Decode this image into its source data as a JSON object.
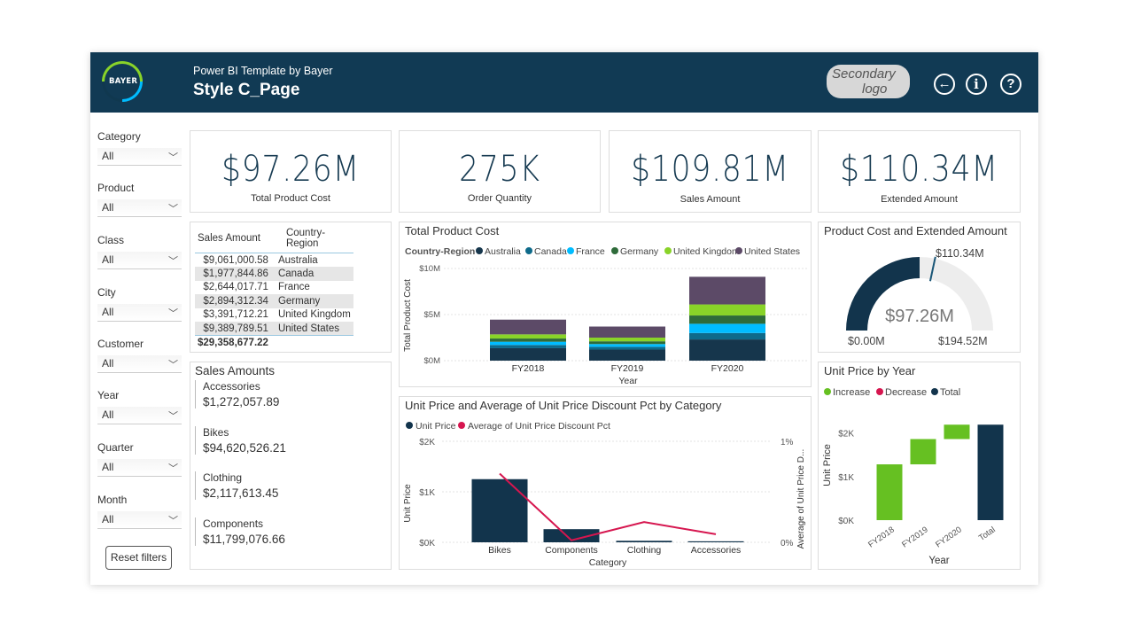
{
  "header": {
    "logo_text": "BAYER",
    "subtitle": "Power BI Template by Bayer",
    "title": "Style C_Page",
    "secondary_logo_line1": "Secondary",
    "secondary_logo_line2": "logo",
    "back_icon": "←",
    "info_icon": "i",
    "help_icon": "?"
  },
  "filters": [
    {
      "label": "Category",
      "value": "All"
    },
    {
      "label": "Product",
      "value": "All"
    },
    {
      "label": "Class",
      "value": "All"
    },
    {
      "label": "City",
      "value": "All"
    },
    {
      "label": "Customer",
      "value": "All"
    },
    {
      "label": "Year",
      "value": "All"
    },
    {
      "label": "Quarter",
      "value": "All"
    },
    {
      "label": "Month",
      "value": "All"
    }
  ],
  "reset_label": "Reset filters",
  "kpis": [
    {
      "value": "$97.26M",
      "label": "Total Product Cost"
    },
    {
      "value": "275K",
      "label": "Order Quantity"
    },
    {
      "value": "$109.81M",
      "label": "Sales Amount"
    },
    {
      "value": "$110.34M",
      "label": "Extended Amount"
    }
  ],
  "sales_table": {
    "headers": [
      "Sales Amount",
      "Country-Region"
    ],
    "rows": [
      [
        "$9,061,000.58",
        "Australia"
      ],
      [
        "$1,977,844.86",
        "Canada"
      ],
      [
        "$2,644,017.71",
        "France"
      ],
      [
        "$2,894,312.34",
        "Germany"
      ],
      [
        "$3,391,712.21",
        "United Kingdom"
      ],
      [
        "$9,389,789.51",
        "United States"
      ]
    ],
    "total": "$29,358,677.22"
  },
  "sales_amounts": {
    "title": "Sales Amounts",
    "items": [
      {
        "name": "Accessories",
        "value": "$1,272,057.89"
      },
      {
        "name": "Bikes",
        "value": "$94,620,526.21"
      },
      {
        "name": "Clothing",
        "value": "$2,117,613.45"
      },
      {
        "name": "Components",
        "value": "$11,799,076.66"
      }
    ]
  },
  "colors": {
    "header": "#113a54",
    "australia": "#16364c",
    "canada": "#0e6a8a",
    "france": "#00bcff",
    "germany": "#2e6b3a",
    "uk": "#89d329",
    "us": "#5c4a67",
    "increase": "#66c022",
    "decrease": "#d6164f",
    "total": "#12344c"
  },
  "chart_data": [
    {
      "type": "bar",
      "title": "Total Product Cost",
      "legend_title": "Country-Region",
      "categories": [
        "FY2018",
        "FY2019",
        "FY2020"
      ],
      "series": [
        {
          "name": "Australia",
          "values": [
            1.35,
            1.2,
            2.3
          ]
        },
        {
          "name": "Canada",
          "values": [
            0.35,
            0.3,
            0.7
          ]
        },
        {
          "name": "France",
          "values": [
            0.35,
            0.3,
            1.0
          ]
        },
        {
          "name": "Germany",
          "values": [
            0.35,
            0.3,
            0.9
          ]
        },
        {
          "name": "United Kingdom",
          "values": [
            0.45,
            0.4,
            1.2
          ]
        },
        {
          "name": "United States",
          "values": [
            1.6,
            1.2,
            3.0
          ]
        }
      ],
      "xlabel": "Year",
      "ylabel": "Total Product Cost",
      "ylim": [
        0,
        10
      ],
      "yticks": [
        "$0M",
        "$5M",
        "$10M"
      ]
    },
    {
      "type": "gauge",
      "title": "Product Cost and Extended Amount",
      "value": 97.26,
      "target": 110.34,
      "min": 0,
      "max": 194.52,
      "value_label": "$97.26M",
      "target_label": "$110.34M",
      "min_label": "$0.00M",
      "max_label": "$194.52M"
    },
    {
      "type": "bar",
      "title": "Unit Price and Average of Unit Price Discount Pct by Category",
      "categories": [
        "Bikes",
        "Components",
        "Clothing",
        "Accessories"
      ],
      "series": [
        {
          "name": "Unit Price",
          "values": [
            1250,
            260,
            30,
            20
          ]
        },
        {
          "name": "Average of Unit Price Discount Pct",
          "values": [
            0.68,
            0.02,
            0.2,
            0.08
          ]
        }
      ],
      "xlabel": "Category",
      "ylabel": "Unit Price",
      "y2label": "Average of Unit Price D...",
      "ylim": [
        0,
        2000
      ],
      "y2lim": [
        0,
        1
      ],
      "yticks": [
        "$0K",
        "$1K",
        "$2K"
      ],
      "y2ticks": [
        "0%",
        "1%"
      ]
    },
    {
      "type": "waterfall",
      "title": "Unit Price by Year",
      "legend": [
        "Increase",
        "Decrease",
        "Total"
      ],
      "categories": [
        "FY2018",
        "FY2019",
        "FY2020",
        "Total"
      ],
      "values": [
        1280,
        580,
        330,
        2190
      ],
      "xlabel": "Year",
      "ylabel": "Unit Price",
      "ylim": [
        0,
        2500
      ],
      "yticks": [
        "$0K",
        "$1K",
        "$2K"
      ]
    }
  ]
}
